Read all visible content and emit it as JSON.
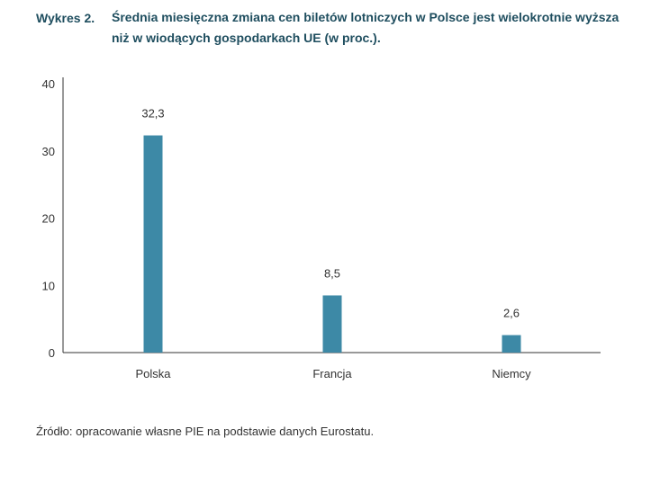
{
  "title": {
    "label": "Wykres 2.",
    "text": "Średnia miesięczna zmiana cen biletów lotniczych w Polsce jest wielokrotnie wyższa niż w wiodących gospodarkach UE (w proc.)."
  },
  "source": "Źródło: opracowanie własne PIE na podstawie danych Eurostatu.",
  "chart_data": {
    "type": "bar",
    "categories": [
      "Polska",
      "Francja",
      "Niemcy"
    ],
    "values": [
      32.3,
      8.5,
      2.6
    ],
    "value_labels": [
      "32,3",
      "8,5",
      "2,6"
    ],
    "ylim": [
      0,
      40
    ],
    "yticks": [
      0,
      10,
      20,
      30,
      40
    ],
    "xlabel": "",
    "ylabel": "",
    "grid": false,
    "bar_color": "#3d89a6",
    "axis_color": "#333333"
  }
}
